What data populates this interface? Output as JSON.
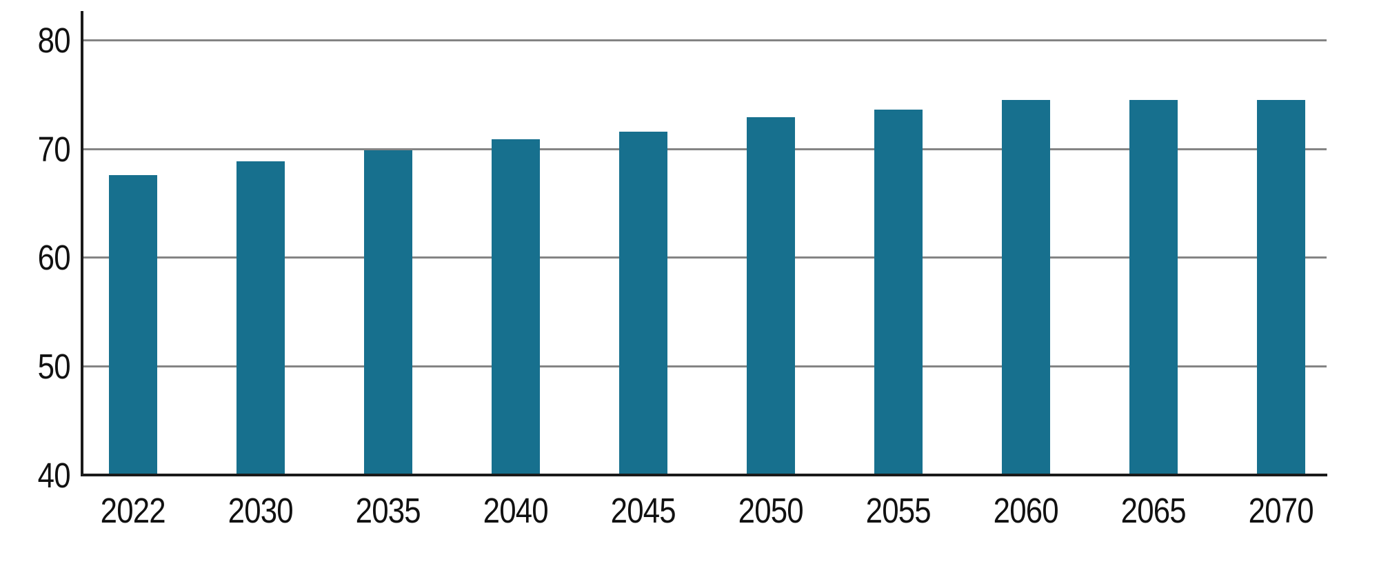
{
  "page": {
    "background": "#ffffff"
  },
  "chart_data": {
    "type": "bar",
    "categories": [
      "2022",
      "2030",
      "2035",
      "2040",
      "2045",
      "2050",
      "2055",
      "2060",
      "2065",
      "2070"
    ],
    "values": [
      67.6,
      68.9,
      69.9,
      70.9,
      71.6,
      72.9,
      73.6,
      74.5,
      74.5,
      74.5
    ],
    "title": "",
    "xlabel": "",
    "ylabel": "",
    "ylim": [
      40,
      80
    ],
    "yticks": [
      40,
      50,
      60,
      70,
      80
    ],
    "ytick_labels": [
      "40",
      "50",
      "60",
      "70",
      "80"
    ],
    "grid": "horizontal-only",
    "legend": "none",
    "bar_color": "#17708E",
    "gridline_color": "#848484",
    "axis_color": "#1a1a1a",
    "label_color": "#111111"
  }
}
